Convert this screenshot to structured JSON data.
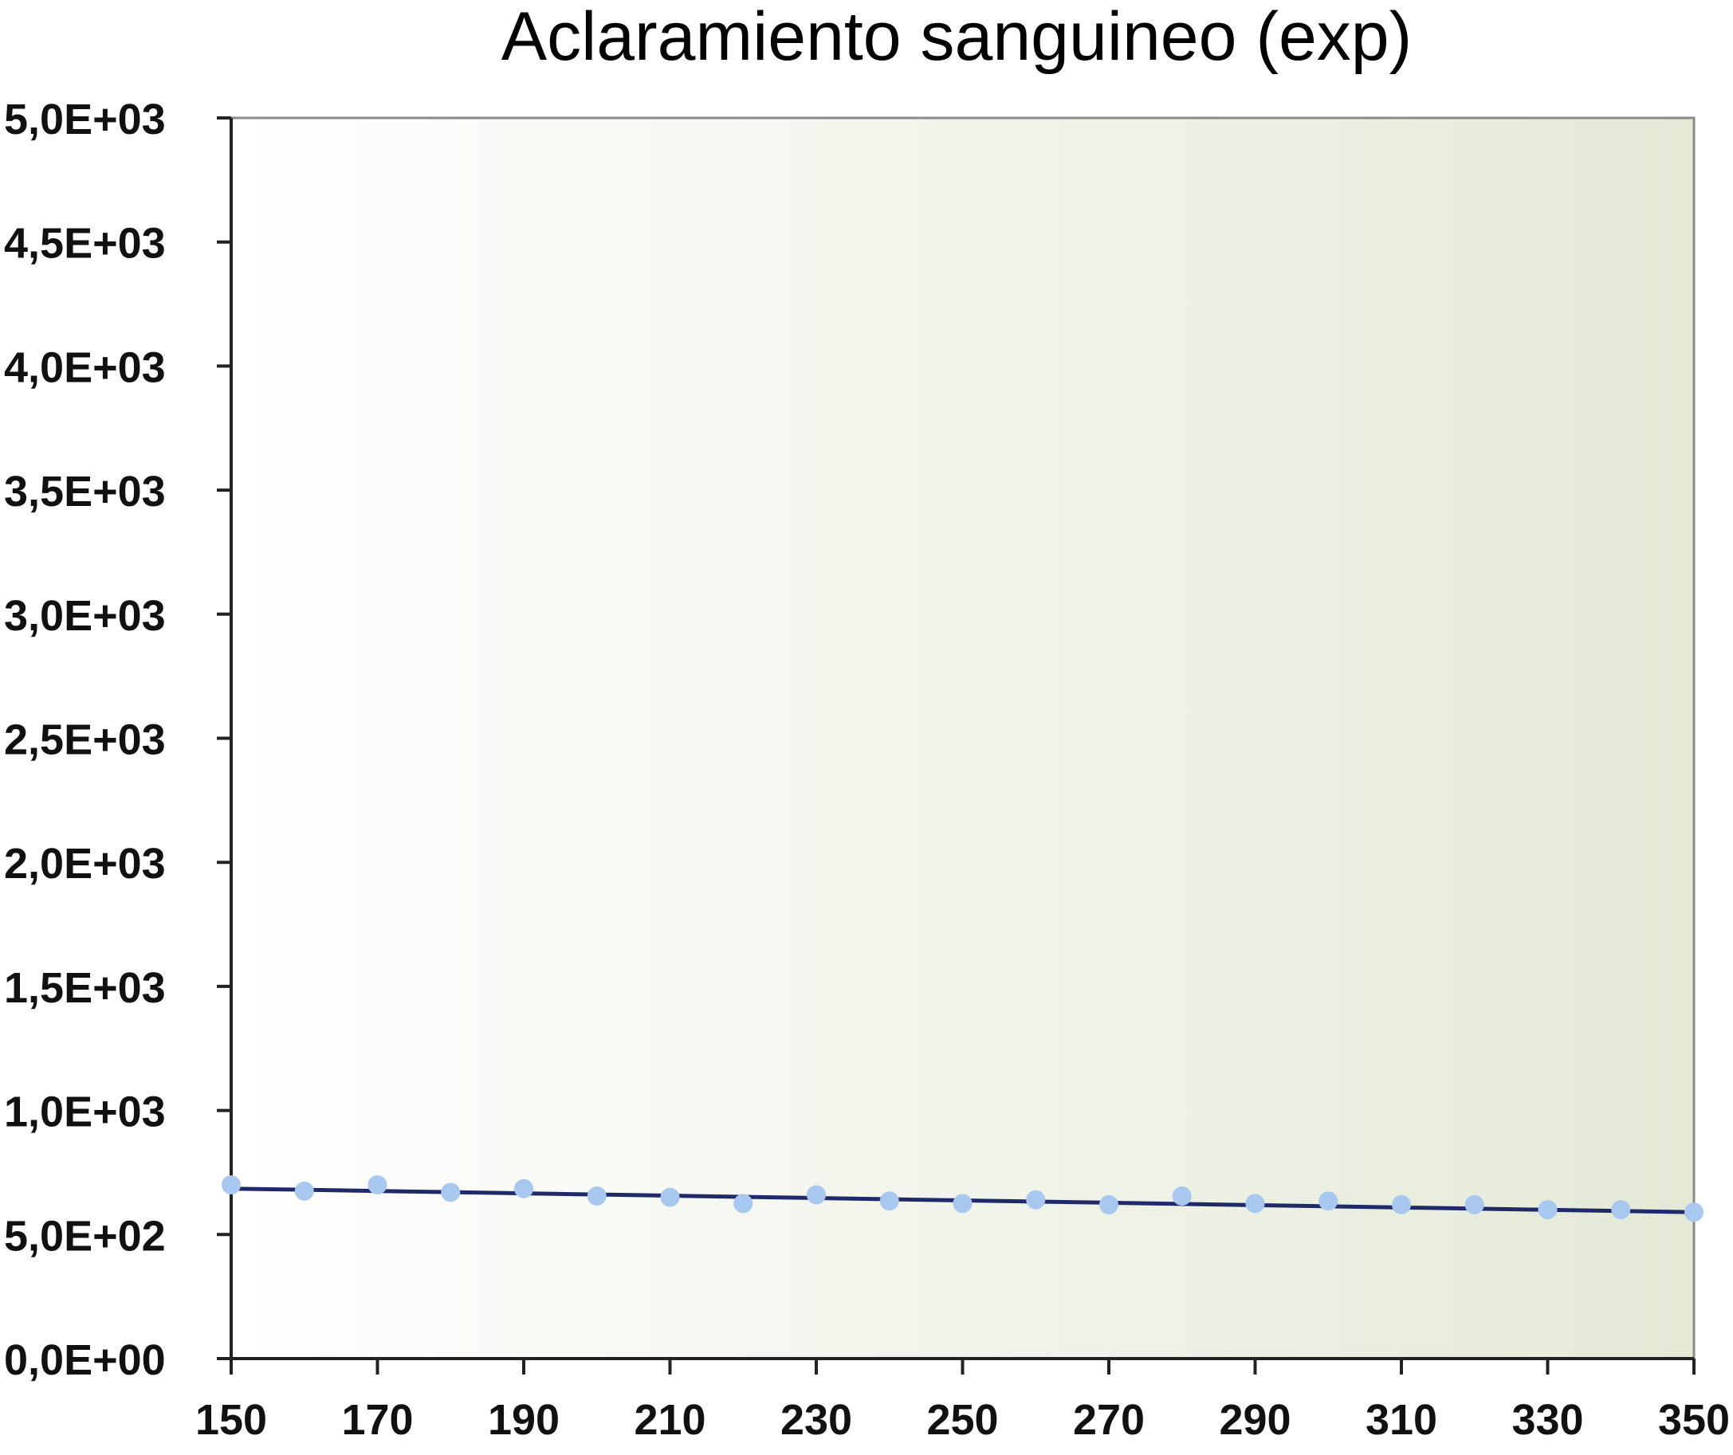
{
  "chart_data": {
    "type": "line",
    "title": "Aclaramiento sanguineo (exp)",
    "xlabel": "",
    "ylabel": "",
    "xlim": [
      150,
      350
    ],
    "ylim": [
      0,
      5000
    ],
    "grid": false,
    "legend": "none",
    "x_ticks": [
      150,
      170,
      190,
      210,
      230,
      250,
      270,
      290,
      310,
      330,
      350
    ],
    "x_tick_labels": [
      "150",
      "170",
      "190",
      "210",
      "230",
      "250",
      "270",
      "290",
      "310",
      "330",
      "350"
    ],
    "y_ticks": [
      0,
      500,
      1000,
      1500,
      2000,
      2500,
      3000,
      3500,
      4000,
      4500,
      5000
    ],
    "y_tick_labels": [
      "0,0E+00",
      "5,0E+02",
      "1,0E+03",
      "1,5E+03",
      "2,0E+03",
      "2,5E+03",
      "3,0E+03",
      "3,5E+03",
      "4,0E+03",
      "4,5E+03",
      "5,0E+03"
    ],
    "series": [
      {
        "kind": "fit-line",
        "color": "#1f2a6b",
        "x": [
          150,
          350
        ],
        "y": [
          685,
          590
        ]
      },
      {
        "kind": "points",
        "color": "#a9c8ef",
        "x": [
          150,
          160,
          170,
          180,
          190,
          200,
          210,
          220,
          230,
          240,
          250,
          260,
          270,
          280,
          290,
          300,
          310,
          320,
          330,
          340,
          350
        ],
        "y": [
          700,
          675,
          700,
          670,
          685,
          655,
          650,
          625,
          660,
          635,
          625,
          640,
          620,
          655,
          625,
          635,
          620,
          620,
          600,
          600,
          590
        ]
      }
    ],
    "plot_background": [
      "#ffffff",
      "#e4e9d6"
    ]
  }
}
